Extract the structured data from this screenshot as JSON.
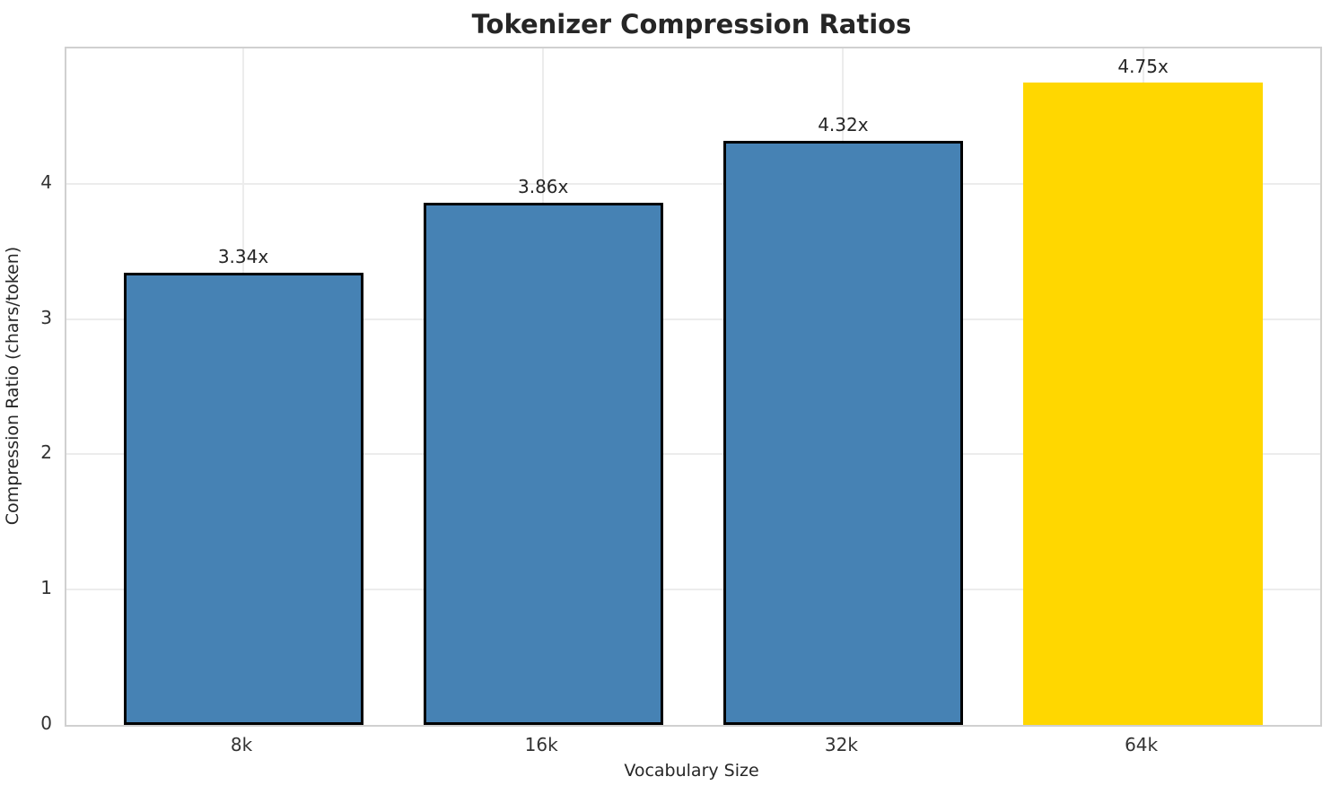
{
  "chart_data": {
    "type": "bar",
    "title": "Tokenizer Compression Ratios",
    "xlabel": "Vocabulary Size",
    "ylabel": "Compression Ratio (chars/token)",
    "categories": [
      "8k",
      "16k",
      "32k",
      "64k"
    ],
    "values": [
      3.34,
      3.86,
      4.32,
      4.75
    ],
    "bar_labels": [
      "3.34x",
      "3.86x",
      "4.32x",
      "4.75x"
    ],
    "ylim": [
      0,
      5
    ],
    "yticks": [
      0,
      1,
      2,
      3,
      4
    ],
    "grid": true,
    "legend": "none",
    "bar_colors": [
      "#4682B4",
      "#4682B4",
      "#4682B4",
      "#FFD700"
    ],
    "bar_edge_colors": [
      "#000000",
      "#000000",
      "#000000",
      "none"
    ],
    "colors": {
      "grid": "#ececec",
      "spine": "#d0d0d0",
      "title_text": "#262626",
      "tick_text": "#333333",
      "highlight": "#FFD700",
      "primary_bar": "#4682B4"
    }
  }
}
